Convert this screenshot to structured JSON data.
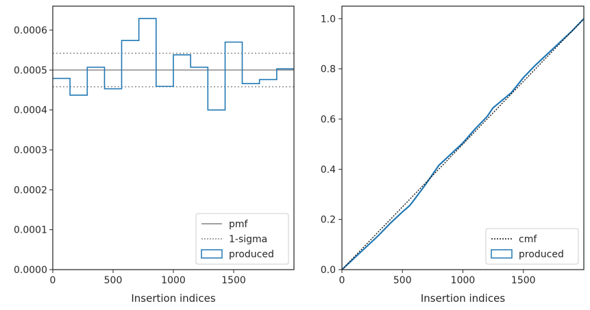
{
  "chart_data": [
    {
      "type": "histogram",
      "xlabel": "Insertion indices",
      "ylabel": "",
      "xlim": [
        0,
        2000
      ],
      "ylim": [
        0,
        0.00066
      ],
      "xticks": [
        0,
        500,
        1000,
        1500
      ],
      "xtick_labels": [
        "0",
        "500",
        "1000",
        "1500"
      ],
      "yticks": [
        0,
        0.0001,
        0.0002,
        0.0003,
        0.0004,
        0.0005,
        0.0006
      ],
      "ytick_labels": [
        "0.0000",
        "0.0001",
        "0.0002",
        "0.0003",
        "0.0004",
        "0.0005",
        "0.0006"
      ],
      "bin_edges": [
        0,
        143,
        286,
        429,
        571,
        714,
        857,
        1000,
        1143,
        1286,
        1429,
        1571,
        1714,
        1857,
        2000
      ],
      "values": [
        0.000479,
        0.000437,
        0.000507,
        0.000453,
        0.000574,
        0.000629,
        0.000459,
        0.000538,
        0.000507,
        0.0004,
        0.00057,
        0.000466,
        0.000476,
        0.000503
      ],
      "hlines": {
        "pmf": 0.0005,
        "sigma_low": 0.000458,
        "sigma_high": 0.000542
      },
      "legend": {
        "position": "lower-right",
        "entries": [
          {
            "label": "pmf",
            "style": "solid",
            "color": "#808080"
          },
          {
            "label": "1-sigma",
            "style": "dotted",
            "color": "#808080"
          },
          {
            "label": "produced",
            "style": "step",
            "color": "#1f77b4"
          }
        ]
      },
      "colors": {
        "produced": "#1f77b4",
        "reference": "#808080"
      }
    },
    {
      "type": "line",
      "xlabel": "Insertion indices",
      "ylabel": "",
      "xlim": [
        0,
        2000
      ],
      "ylim": [
        0,
        1.05
      ],
      "xticks": [
        0,
        500,
        1000,
        1500
      ],
      "xtick_labels": [
        "0",
        "500",
        "1000",
        "1500"
      ],
      "yticks": [
        0,
        0.2,
        0.4,
        0.6,
        0.8,
        1.0
      ],
      "ytick_labels": [
        "0.0",
        "0.2",
        "0.4",
        "0.6",
        "0.8",
        "1.0"
      ],
      "series": [
        {
          "name": "cmf",
          "style": "dotted",
          "color": "#111111",
          "x": [
            0,
            2000
          ],
          "y": [
            0,
            1.0
          ]
        },
        {
          "name": "produced",
          "style": "solid",
          "color": "#1f77b4",
          "x": [
            0,
            100,
            200,
            300,
            400,
            500,
            560,
            600,
            700,
            800,
            900,
            1000,
            1100,
            1200,
            1250,
            1300,
            1400,
            1500,
            1600,
            1700,
            1800,
            1900,
            2000
          ],
          "y": [
            0,
            0.045,
            0.09,
            0.135,
            0.185,
            0.23,
            0.255,
            0.28,
            0.345,
            0.415,
            0.46,
            0.505,
            0.56,
            0.61,
            0.645,
            0.665,
            0.705,
            0.765,
            0.815,
            0.86,
            0.905,
            0.95,
            1.0
          ]
        }
      ],
      "legend": {
        "position": "lower-right",
        "entries": [
          {
            "label": "cmf",
            "style": "dotted",
            "color": "#111111"
          },
          {
            "label": "produced",
            "style": "step",
            "color": "#1f77b4"
          }
        ]
      }
    }
  ]
}
